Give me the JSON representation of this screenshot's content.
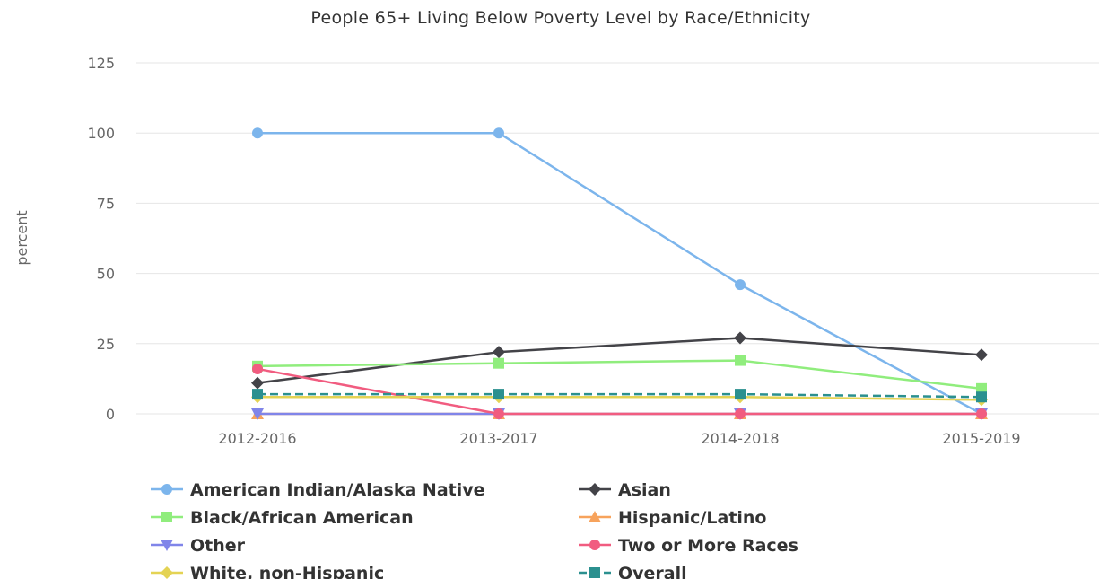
{
  "chart_data": {
    "type": "line",
    "title": "People 65+ Living Below Poverty Level by Race/Ethnicity",
    "ylabel": "percent",
    "xlabel": "",
    "categories": [
      "2012-2016",
      "2013-2017",
      "2014-2018",
      "2015-2019"
    ],
    "ylim": [
      0,
      125
    ],
    "yticks": [
      0,
      25,
      50,
      75,
      100,
      125
    ],
    "grid": true,
    "legend_position": "bottom",
    "series": [
      {
        "name": "American Indian/Alaska Native",
        "values": [
          100,
          100,
          46,
          0
        ],
        "color": "#7cb5ec",
        "marker": "circle"
      },
      {
        "name": "Asian",
        "values": [
          11,
          22,
          27,
          21
        ],
        "color": "#434348",
        "marker": "diamond"
      },
      {
        "name": "Black/African American",
        "values": [
          17,
          18,
          19,
          9
        ],
        "color": "#90ed7d",
        "marker": "square"
      },
      {
        "name": "Hispanic/Latino",
        "values": [
          0,
          0,
          0,
          0
        ],
        "color": "#f7a35c",
        "marker": "triangle"
      },
      {
        "name": "Other",
        "values": [
          0,
          0,
          0,
          0
        ],
        "color": "#8085e9",
        "marker": "triangle-down"
      },
      {
        "name": "Two or More Races",
        "values": [
          16,
          0,
          0,
          0
        ],
        "color": "#f15c80",
        "marker": "circle"
      },
      {
        "name": "White, non-Hispanic",
        "values": [
          6,
          6,
          6,
          5
        ],
        "color": "#e4d354",
        "marker": "diamond"
      },
      {
        "name": "Overall",
        "values": [
          7,
          7,
          7,
          6
        ],
        "color": "#2b908f",
        "marker": "square",
        "dashed": true
      }
    ]
  }
}
